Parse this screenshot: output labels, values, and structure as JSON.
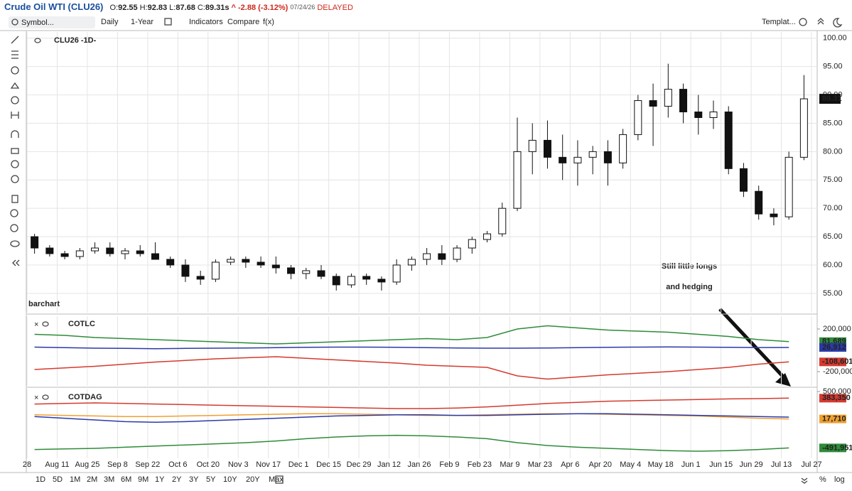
{
  "header": {
    "symbol": "Crude Oil WTI (CLU26)",
    "quote": [
      {
        "label": "O:",
        "value": "92.55"
      },
      {
        "label": "H:",
        "value": "92.83"
      },
      {
        "label": "L:",
        "value": "87.68"
      },
      {
        "label": "C:",
        "value": "89.31s"
      }
    ],
    "change": "^ -2.88 (-3.12%)",
    "date": "07/24/26",
    "status": "DELAYED"
  },
  "toolbar": {
    "search_placeholder": "Symbol...",
    "interval": "Daily",
    "range": "1-Year",
    "buttons": [
      "Indicators",
      "Compare",
      "f(x)"
    ],
    "template": "Templat..."
  },
  "watermark": "barchart",
  "annotation": [
    "Still little longs",
    "and hedging"
  ],
  "ranges": [
    "1D",
    "5D",
    "1M",
    "2M",
    "3M",
    "6M",
    "9M",
    "1Y",
    "2Y",
    "3Y",
    "5Y",
    "10Y",
    "20Y",
    "Max"
  ],
  "active_range": "1Y",
  "scale_buttons": [
    "%",
    "log"
  ],
  "chart_data": [
    {
      "type": "candlestick",
      "label": "CLU26 -1D-",
      "open": [
        65,
        63,
        62,
        61.5,
        62.5,
        63,
        62,
        62.5,
        62,
        61,
        60,
        58,
        57.5,
        60.5,
        61,
        60.5,
        60,
        59.5,
        58.5,
        59,
        58,
        56.5,
        58,
        57.5,
        57,
        60,
        61,
        62,
        61,
        63,
        64.5,
        65.5,
        70,
        80,
        82,
        79,
        78,
        79,
        80,
        78,
        83,
        89,
        88,
        91,
        87,
        86,
        87,
        77,
        73,
        69,
        68.5,
        79
      ],
      "high": [
        65.5,
        63.5,
        62.5,
        63,
        64,
        64,
        63,
        63.5,
        64,
        61.5,
        61,
        59,
        61,
        61.5,
        61.5,
        61.5,
        61.5,
        60,
        59.5,
        60,
        58.5,
        58.5,
        58.5,
        58,
        61,
        61.5,
        63,
        63.5,
        63.5,
        65,
        66,
        71,
        86,
        85,
        85.5,
        83,
        82,
        81,
        82,
        84,
        90,
        92,
        95.5,
        92,
        90,
        89,
        88,
        78,
        74,
        70,
        80,
        93.5
      ],
      "low": [
        62,
        61.5,
        61,
        61,
        62,
        61.5,
        61,
        61.5,
        61,
        59.5,
        57,
        56.5,
        57,
        60,
        59.5,
        59.5,
        58.5,
        57.5,
        57.5,
        57.5,
        55.5,
        56,
        56.5,
        55.5,
        56.5,
        59,
        60,
        60,
        60.5,
        62,
        64,
        65,
        69.5,
        76,
        77,
        75,
        74,
        76,
        74,
        77,
        82,
        81,
        86,
        85,
        83,
        84,
        76,
        72,
        68,
        67,
        68,
        78.5
      ],
      "close": [
        63,
        62,
        61.5,
        62.5,
        63,
        62,
        62.5,
        62,
        61,
        60,
        58,
        57.5,
        60.5,
        61,
        60.5,
        60,
        59.5,
        58.5,
        59,
        58,
        56.5,
        58,
        57.5,
        57,
        60,
        61,
        62,
        61,
        63,
        64.5,
        65.5,
        70,
        80,
        82,
        79,
        78,
        79,
        80,
        78,
        83,
        89,
        88,
        91,
        87,
        86,
        87,
        77,
        73,
        69,
        68.5,
        79,
        89.31
      ],
      "last_price": 89.31,
      "ylim": [
        51.6,
        101.1
      ],
      "yticks": [
        {
          "value": 55,
          "label": "55.00"
        },
        {
          "value": 60,
          "label": "60.00"
        },
        {
          "value": 65,
          "label": "65.00"
        },
        {
          "value": 70,
          "label": "70.00"
        },
        {
          "value": 75,
          "label": "75.00"
        },
        {
          "value": 80,
          "label": "80.00"
        },
        {
          "value": 85,
          "label": "85.00"
        },
        {
          "value": 90,
          "label": "90.00"
        },
        {
          "value": 95,
          "label": "95.00"
        },
        {
          "value": 100,
          "label": "100.00"
        }
      ],
      "xticks": [
        {
          "value": 0,
          "label": "28"
        },
        {
          "value": 2,
          "label": "Aug 11"
        },
        {
          "value": 4,
          "label": "Aug 25"
        },
        {
          "value": 6,
          "label": "Sep 8"
        },
        {
          "value": 8,
          "label": "Sep 22"
        },
        {
          "value": 10,
          "label": "Oct 6"
        },
        {
          "value": 12,
          "label": "Oct 20"
        },
        {
          "value": 14,
          "label": "Nov 3"
        },
        {
          "value": 16,
          "label": "Nov 17"
        },
        {
          "value": 18,
          "label": "Dec 1"
        },
        {
          "value": 20,
          "label": "Dec 15"
        },
        {
          "value": 22,
          "label": "Dec 29"
        },
        {
          "value": 24,
          "label": "Jan 12"
        },
        {
          "value": 26,
          "label": "Jan 26"
        },
        {
          "value": 28,
          "label": "Feb 9"
        },
        {
          "value": 30,
          "label": "Feb 23"
        },
        {
          "value": 32,
          "label": "Mar 9"
        },
        {
          "value": 34,
          "label": "Mar 23"
        },
        {
          "value": 36,
          "label": "Apr 6"
        },
        {
          "value": 38,
          "label": "Apr 20"
        },
        {
          "value": 40,
          "label": "May 4"
        },
        {
          "value": 42,
          "label": "May 18"
        },
        {
          "value": 44,
          "label": "Jun 1"
        },
        {
          "value": 46,
          "label": "Jun 15"
        },
        {
          "value": 48,
          "label": "Jun 29"
        },
        {
          "value": 50,
          "label": "Jul 13"
        },
        {
          "value": 52,
          "label": "Jul 27"
        }
      ],
      "grid": true
    },
    {
      "type": "line",
      "label": "COTLC",
      "series": [
        {
          "color": "#2e8b3a",
          "values": [
            150000,
            140000,
            120000,
            110000,
            100000,
            90000,
            80000,
            70000,
            60000,
            70000,
            80000,
            90000,
            100000,
            110000,
            100000,
            120000,
            200000,
            230000,
            210000,
            190000,
            180000,
            170000,
            150000,
            130000,
            100000,
            81689
          ],
          "last_label": "81,689"
        },
        {
          "color": "#2b3aa8",
          "values": [
            30000,
            25000,
            20000,
            18000,
            15000,
            18000,
            20000,
            22000,
            25000,
            28000,
            30000,
            30000,
            28000,
            25000,
            22000,
            20000,
            20000,
            22000,
            25000,
            28000,
            30000,
            32000,
            30000,
            28000,
            26000,
            26912
          ],
          "last_label": "26,912"
        },
        {
          "color": "#d43a2f",
          "values": [
            -180000,
            -165000,
            -150000,
            -130000,
            -110000,
            -95000,
            -80000,
            -70000,
            -60000,
            -75000,
            -90000,
            -105000,
            -120000,
            -140000,
            -150000,
            -160000,
            -240000,
            -270000,
            -250000,
            -230000,
            -215000,
            -200000,
            -180000,
            -160000,
            -130000,
            -108601
          ],
          "last_label": "-108,601"
        }
      ],
      "ylim": [
        -333000,
        320000
      ],
      "yticks": [
        {
          "value": 200000,
          "label": "200,000"
        },
        {
          "value": -200000,
          "label": "-200,000"
        }
      ]
    },
    {
      "type": "line",
      "label": "COTDAG",
      "series": [
        {
          "color": "#d43a2f",
          "values": [
            280000,
            290000,
            300000,
            290000,
            280000,
            270000,
            260000,
            250000,
            240000,
            230000,
            220000,
            210000,
            200000,
            200000,
            210000,
            230000,
            260000,
            290000,
            310000,
            330000,
            340000,
            350000,
            360000,
            370000,
            375000,
            383350
          ],
          "last_label": "383,350"
        },
        {
          "color": "#f0a030",
          "values": [
            90000,
            80000,
            70000,
            60000,
            60000,
            70000,
            80000,
            90000,
            100000,
            110000,
            110000,
            100000,
            90000,
            80000,
            80000,
            90000,
            100000,
            110000,
            110000,
            100000,
            90000,
            80000,
            70000,
            50000,
            30000,
            17710
          ],
          "last_label": "17,710"
        },
        {
          "color": "#2b3aa8",
          "values": [
            60000,
            30000,
            0,
            -30000,
            -40000,
            -30000,
            -10000,
            10000,
            30000,
            50000,
            70000,
            80000,
            90000,
            90000,
            80000,
            80000,
            90000,
            100000,
            110000,
            110000,
            100000,
            90000,
            80000,
            70000,
            60000,
            50000
          ]
        },
        {
          "color": "#2e8b3a",
          "values": [
            -520000,
            -510000,
            -500000,
            -480000,
            -460000,
            -440000,
            -420000,
            -400000,
            -370000,
            -330000,
            -300000,
            -280000,
            -270000,
            -280000,
            -300000,
            -330000,
            -400000,
            -450000,
            -480000,
            -500000,
            -520000,
            -540000,
            -550000,
            -540000,
            -520000,
            -491951
          ],
          "last_label": "-491,951"
        }
      ],
      "ylim": [
        -675000,
        537500
      ],
      "yticks": [
        {
          "value": 500000,
          "label": "500,000"
        }
      ]
    }
  ]
}
